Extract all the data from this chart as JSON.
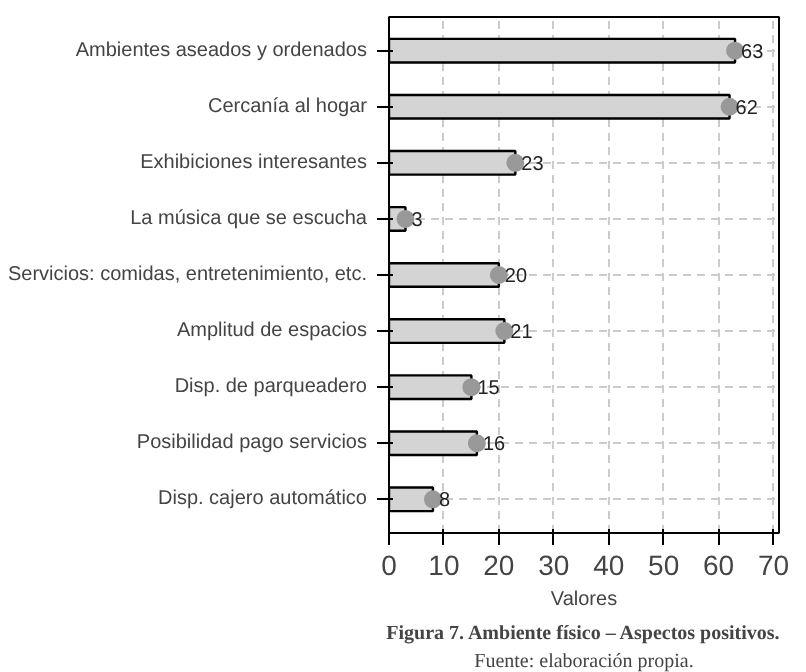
{
  "chart_data": {
    "type": "bar",
    "orientation": "horizontal",
    "categories": [
      "Ambientes aseados y ordenados",
      "Cercanía al hogar",
      "Exhibiciones interesantes",
      "La música que se escucha",
      "Servicios: comidas, entretenimiento, etc.",
      "Amplitud de espacios",
      "Disp. de parqueadero",
      "Posibilidad pago servicios",
      "Disp. cajero automático"
    ],
    "series": [
      {
        "color": "#d4d4d4",
        "values": [
          63,
          62,
          23,
          3,
          20,
          21,
          15,
          16,
          8
        ],
        "value_labels": [
          "63",
          "62",
          "23",
          "3",
          "20",
          "21",
          "15",
          "16",
          "8"
        ]
      },
      {
        "type": "scatter",
        "color": "#999999",
        "marker": "circle",
        "values": [
          63,
          62,
          23,
          3,
          20,
          21,
          15,
          16,
          8
        ]
      }
    ],
    "xlim": [
      0,
      71
    ],
    "xticks": [
      0,
      10,
      20,
      30,
      40,
      50,
      60,
      70
    ],
    "xlabel": "Valores",
    "grid": true,
    "annotations": [
      "Figura 7. Ambiente físico – Aspectos positivos.",
      "Fuente: elaboración propia."
    ]
  }
}
